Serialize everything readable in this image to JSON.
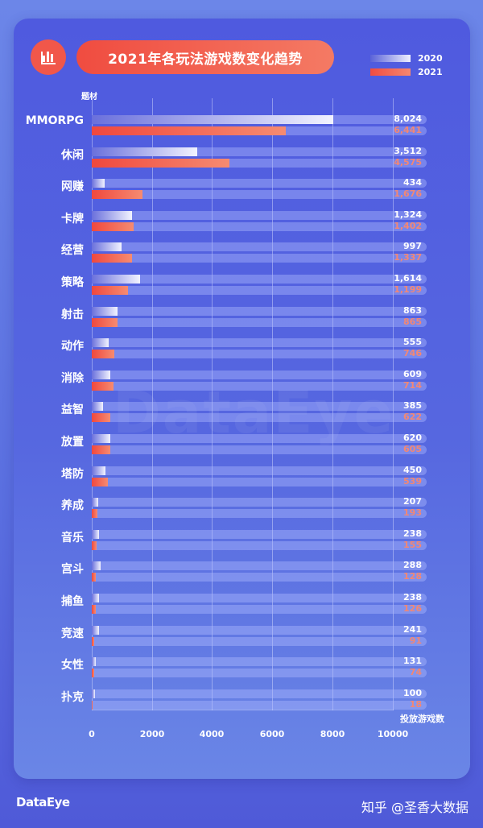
{
  "header": {
    "title": "2021年各玩法游戏数变化趋势",
    "logo_icon": "bar-chart-icon"
  },
  "legend": [
    {
      "label": "2020",
      "color": "#eef0ff"
    },
    {
      "label": "2021",
      "color": "#f04c40"
    }
  ],
  "axes": {
    "y_title": "题材",
    "x_title": "投放游戏数",
    "x_ticks": [
      "0",
      "2000",
      "4000",
      "6000",
      "8000",
      "10000"
    ]
  },
  "rows": [
    {
      "cat": "MMORPG",
      "v2020": 8024,
      "v2021": 6441,
      "l2020": "8,024",
      "l2021": "6,441"
    },
    {
      "cat": "休闲",
      "v2020": 3512,
      "v2021": 4575,
      "l2020": "3,512",
      "l2021": "4,575"
    },
    {
      "cat": "网赚",
      "v2020": 434,
      "v2021": 1676,
      "l2020": "434",
      "l2021": "1,676"
    },
    {
      "cat": "卡牌",
      "v2020": 1324,
      "v2021": 1402,
      "l2020": "1,324",
      "l2021": "1,402"
    },
    {
      "cat": "经营",
      "v2020": 997,
      "v2021": 1337,
      "l2020": "997",
      "l2021": "1,337"
    },
    {
      "cat": "策略",
      "v2020": 1614,
      "v2021": 1199,
      "l2020": "1,614",
      "l2021": "1,199"
    },
    {
      "cat": "射击",
      "v2020": 863,
      "v2021": 865,
      "l2020": "863",
      "l2021": "865"
    },
    {
      "cat": "动作",
      "v2020": 555,
      "v2021": 746,
      "l2020": "555",
      "l2021": "746"
    },
    {
      "cat": "消除",
      "v2020": 609,
      "v2021": 714,
      "l2020": "609",
      "l2021": "714"
    },
    {
      "cat": "益智",
      "v2020": 385,
      "v2021": 622,
      "l2020": "385",
      "l2021": "622"
    },
    {
      "cat": "放置",
      "v2020": 620,
      "v2021": 605,
      "l2020": "620",
      "l2021": "605"
    },
    {
      "cat": "塔防",
      "v2020": 450,
      "v2021": 539,
      "l2020": "450",
      "l2021": "539"
    },
    {
      "cat": "养成",
      "v2020": 207,
      "v2021": 193,
      "l2020": "207",
      "l2021": "193"
    },
    {
      "cat": "音乐",
      "v2020": 238,
      "v2021": 155,
      "l2020": "238",
      "l2021": "155"
    },
    {
      "cat": "宫斗",
      "v2020": 288,
      "v2021": 128,
      "l2020": "288",
      "l2021": "128"
    },
    {
      "cat": "捕鱼",
      "v2020": 238,
      "v2021": 126,
      "l2020": "238",
      "l2021": "126"
    },
    {
      "cat": "竞速",
      "v2020": 241,
      "v2021": 91,
      "l2020": "241",
      "l2021": "91"
    },
    {
      "cat": "女性",
      "v2020": 131,
      "v2021": 74,
      "l2020": "131",
      "l2021": "74"
    },
    {
      "cat": "扑克",
      "v2020": 100,
      "v2021": 18,
      "l2020": "100",
      "l2021": "18"
    }
  ],
  "footer": {
    "brand": "DataEye",
    "credit": "知乎 @圣香大数据",
    "watermark": "DataEye"
  },
  "chart_data": {
    "type": "bar",
    "orientation": "horizontal",
    "title": "2021年各玩法游戏数变化趋势",
    "xlabel": "投放游戏数",
    "ylabel": "题材",
    "xlim": [
      0,
      10000
    ],
    "x_ticks": [
      0,
      2000,
      4000,
      6000,
      8000,
      10000
    ],
    "grid": true,
    "legend_position": "top-right",
    "categories": [
      "MMORPG",
      "休闲",
      "网赚",
      "卡牌",
      "经营",
      "策略",
      "射击",
      "动作",
      "消除",
      "益智",
      "放置",
      "塔防",
      "养成",
      "音乐",
      "宫斗",
      "捕鱼",
      "竞速",
      "女性",
      "扑克"
    ],
    "series": [
      {
        "name": "2020",
        "values": [
          8024,
          3512,
          434,
          1324,
          997,
          1614,
          863,
          555,
          609,
          385,
          620,
          450,
          207,
          238,
          288,
          238,
          241,
          131,
          100
        ]
      },
      {
        "name": "2021",
        "values": [
          6441,
          4575,
          1676,
          1402,
          1337,
          1199,
          865,
          746,
          714,
          622,
          605,
          539,
          193,
          155,
          128,
          126,
          91,
          74,
          18
        ]
      }
    ]
  }
}
